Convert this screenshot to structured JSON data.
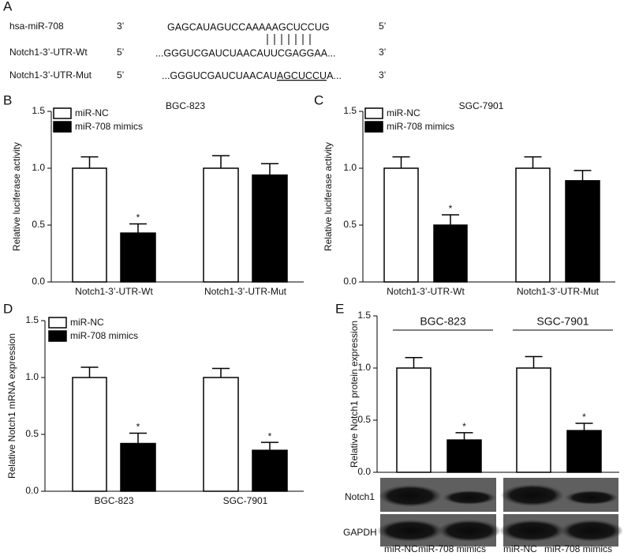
{
  "panels": [
    "A",
    "B",
    "C",
    "D",
    "E"
  ],
  "alignment": [
    {
      "name": "hsa-miR-708",
      "left_end": "3’",
      "sequence": "GAGCAUAGUCCAAAAAGCUCCUG",
      "right_end": "5’"
    },
    {
      "name": "Notch1-3’-UTR-Wt",
      "left_end": "5’",
      "sequence": "...GGGUCGAUCUAACAUUCGAGGAA...",
      "right_end": "3’"
    },
    {
      "name": "Notch1-3’-UTR-Mut",
      "left_end": "5’",
      "sequence_start": "...GGGUCGAUCUAACAU",
      "mutated": "AGCUCCU",
      "sequence_end": "A...",
      "right_end": "3’"
    }
  ],
  "blot": {
    "rows": [
      "Notch1",
      "GAPDH"
    ]
  },
  "chart_data": [
    {
      "type": "bar",
      "title": "BGC-823",
      "ylabel": "Relative luciferase activity",
      "categories": [
        "Notch1-3’-UTR-Wt",
        "Notch1-3’-UTR-Mut"
      ],
      "series": [
        {
          "name": "miR-NC",
          "color": "#ffffff",
          "values": [
            1.0,
            1.0
          ],
          "errors": [
            0.1,
            0.11
          ]
        },
        {
          "name": "miR-708 mimics",
          "color": "#000000",
          "values": [
            0.43,
            0.94
          ],
          "errors": [
            0.08,
            0.1
          ]
        }
      ],
      "ylim": [
        0,
        1.5
      ],
      "yticks": [
        {
          "value": 0,
          "label": "0.0"
        },
        {
          "value": 0.5,
          "label": "0.5"
        },
        {
          "value": 1,
          "label": "1.0"
        },
        {
          "value": 1.5,
          "label": "1.5"
        }
      ],
      "legend": "upper left",
      "annotations": [
        {
          "text": "*",
          "category": "Notch1-3’-UTR-Wt",
          "series": "miR-708 mimics"
        }
      ]
    },
    {
      "type": "bar",
      "title": "SGC-7901",
      "ylabel": "Relative luciferase activity",
      "categories": [
        "Notch1-3’-UTR-Wt",
        "Notch1-3’-UTR-Mut"
      ],
      "series": [
        {
          "name": "miR-NC",
          "color": "#ffffff",
          "values": [
            1.0,
            1.0
          ],
          "errors": [
            0.1,
            0.1
          ]
        },
        {
          "name": "miR-708 mimics",
          "color": "#000000",
          "values": [
            0.5,
            0.89
          ],
          "errors": [
            0.09,
            0.09
          ]
        }
      ],
      "ylim": [
        0,
        1.5
      ],
      "yticks": [
        {
          "value": 0,
          "label": "0.0"
        },
        {
          "value": 0.5,
          "label": "0.5"
        },
        {
          "value": 1,
          "label": "1.0"
        },
        {
          "value": 1.5,
          "label": "1.5"
        }
      ],
      "legend": "upper left",
      "annotations": [
        {
          "text": "*",
          "category": "Notch1-3’-UTR-Wt",
          "series": "miR-708 mimics"
        }
      ]
    },
    {
      "type": "bar",
      "ylabel": "Relative Notch1 mRNA expression",
      "categories": [
        "BGC-823",
        "SGC-7901"
      ],
      "series": [
        {
          "name": "miR-NC",
          "color": "#ffffff",
          "values": [
            1.0,
            1.0
          ],
          "errors": [
            0.09,
            0.08
          ]
        },
        {
          "name": "miR-708 mimics",
          "color": "#000000",
          "values": [
            0.42,
            0.36
          ],
          "errors": [
            0.09,
            0.07
          ]
        }
      ],
      "ylim": [
        0,
        1.5
      ],
      "yticks": [
        {
          "value": 0,
          "label": "0.0"
        },
        {
          "value": 0.5,
          "label": "0.5"
        },
        {
          "value": 1,
          "label": "1.0"
        },
        {
          "value": 1.5,
          "label": "1.5"
        }
      ],
      "legend": "upper left",
      "annotations": [
        {
          "text": "*",
          "category": "BGC-823",
          "series": "miR-708 mimics"
        },
        {
          "text": "*",
          "category": "SGC-7901",
          "series": "miR-708 mimics"
        }
      ]
    },
    {
      "type": "bar",
      "ylabel": "Relative Notch1 protein expression",
      "categories": [
        "BGC-823",
        "SGC-7901"
      ],
      "series": [
        {
          "name": "miR-NC",
          "color": "#ffffff",
          "values": [
            1.0,
            1.0
          ],
          "errors": [
            0.1,
            0.11
          ]
        },
        {
          "name": "miR-708 mimics",
          "color": "#000000",
          "values": [
            0.31,
            0.4
          ],
          "errors": [
            0.07,
            0.07
          ]
        }
      ],
      "ylim": [
        0,
        1.5
      ],
      "yticks": [
        {
          "value": 0,
          "label": "0.0"
        },
        {
          "value": 0.5,
          "label": "0.5"
        },
        {
          "value": 1,
          "label": "1.0"
        },
        {
          "value": 1.5,
          "label": "1.5"
        }
      ],
      "categories_on_top": true,
      "annotations": [
        {
          "text": "*",
          "category": "BGC-823",
          "series": "miR-708 mimics"
        },
        {
          "text": "*",
          "category": "SGC-7901",
          "series": "miR-708 mimics"
        }
      ]
    }
  ]
}
